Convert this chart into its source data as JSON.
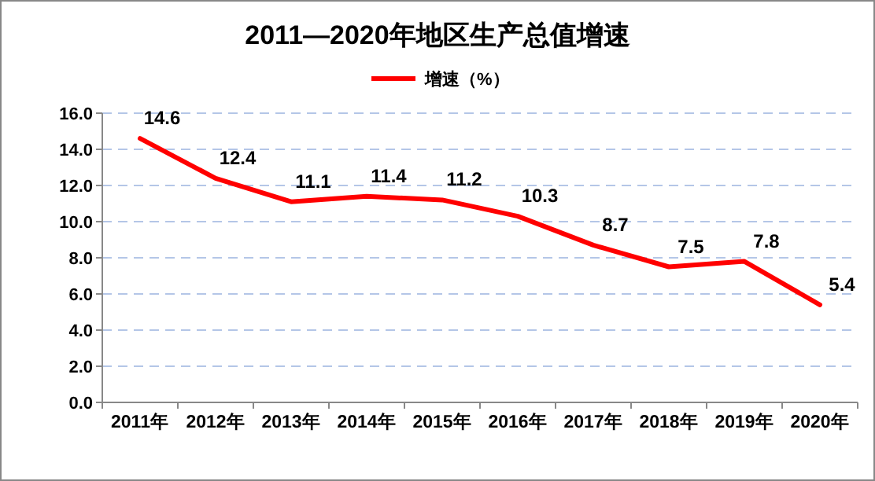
{
  "chart_data": {
    "type": "line",
    "title": "2011—2020年地区生产总值增速",
    "categories": [
      "2011年",
      "2012年",
      "2013年",
      "2014年",
      "2015年",
      "2016年",
      "2017年",
      "2018年",
      "2019年",
      "2020年"
    ],
    "series": [
      {
        "name": "增速（%）",
        "color": "#ff0000",
        "values": [
          14.6,
          12.4,
          11.1,
          11.4,
          11.2,
          10.3,
          8.7,
          7.5,
          7.8,
          5.4
        ]
      }
    ],
    "ylim": [
      0,
      16
    ],
    "yticks": [
      {
        "value": 0,
        "label": "0.0"
      },
      {
        "value": 2,
        "label": "2.0"
      },
      {
        "value": 4,
        "label": "4.0"
      },
      {
        "value": 6,
        "label": "6.0"
      },
      {
        "value": 8,
        "label": "8.0"
      },
      {
        "value": 10,
        "label": "10.0"
      },
      {
        "value": 12,
        "label": "12.0"
      },
      {
        "value": 14,
        "label": "14.0"
      },
      {
        "value": 16,
        "label": "16.0"
      }
    ],
    "grid": "y",
    "legend": "top",
    "data_labels": true,
    "marker": "none",
    "line_style": "solid"
  }
}
